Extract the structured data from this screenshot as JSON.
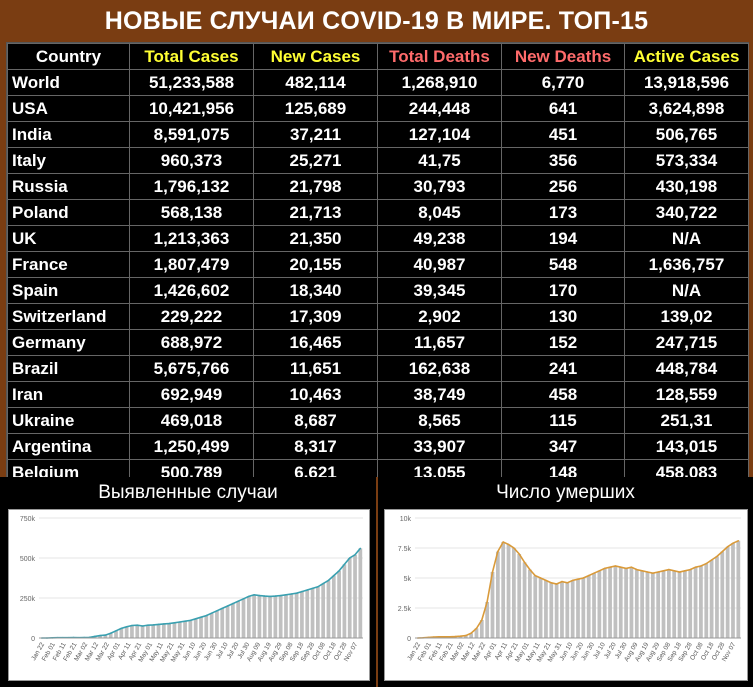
{
  "title": "НОВЫЕ СЛУЧАИ COVID-19 В МИРЕ. ТОП-15",
  "table": {
    "headers": [
      "Country",
      "Total Cases",
      "New Cases",
      "Total Deaths",
      "New Deaths",
      "Active Cases"
    ],
    "header_colors": [
      "#ffffff",
      "#ffff33",
      "#ffff33",
      "#ff6b6b",
      "#ff6b6b",
      "#ffff33"
    ],
    "rows": [
      [
        "World",
        "51,233,588",
        "482,114",
        "1,268,910",
        "6,770",
        "13,918,596"
      ],
      [
        "USA",
        "10,421,956",
        "125,689",
        "244,448",
        "641",
        "3,624,898"
      ],
      [
        "India",
        "8,591,075",
        "37,211",
        "127,104",
        "451",
        "506,765"
      ],
      [
        "Italy",
        "960,373",
        "25,271",
        "41,75",
        "356",
        "573,334"
      ],
      [
        "Russia",
        "1,796,132",
        "21,798",
        "30,793",
        "256",
        "430,198"
      ],
      [
        "Poland",
        "568,138",
        "21,713",
        "8,045",
        "173",
        "340,722"
      ],
      [
        "UK",
        "1,213,363",
        "21,350",
        "49,238",
        "194",
        "N/A"
      ],
      [
        "France",
        "1,807,479",
        "20,155",
        "40,987",
        "548",
        "1,636,757"
      ],
      [
        "Spain",
        "1,426,602",
        "18,340",
        "39,345",
        "170",
        "N/A"
      ],
      [
        "Switzerland",
        "229,222",
        "17,309",
        "2,902",
        "130",
        "139,02"
      ],
      [
        "Germany",
        "688,972",
        "16,465",
        "11,657",
        "152",
        "247,715"
      ],
      [
        "Brazil",
        "5,675,766",
        "11,651",
        "162,638",
        "241",
        "448,784"
      ],
      [
        "Iran",
        "692,949",
        "10,463",
        "38,749",
        "458",
        "128,559"
      ],
      [
        "Ukraine",
        "469,018",
        "8,687",
        "8,565",
        "115",
        "251,31"
      ],
      [
        "Argentina",
        "1,250,499",
        "8,317",
        "33,907",
        "347",
        "143,015"
      ],
      [
        "Belgium",
        "500,789",
        "6,621",
        "13,055",
        "148",
        "458,083"
      ]
    ]
  },
  "chart_data": [
    {
      "type": "bar",
      "title": "Выявленные случаи",
      "ylim": [
        0,
        750000
      ],
      "yticks": [
        "750k",
        "500k",
        "250k",
        "0"
      ],
      "ytick_values": [
        750000,
        500000,
        250000,
        0
      ],
      "xticks": [
        "Jan 22",
        "Feb 01",
        "Feb 11",
        "Feb 21",
        "Mar 02",
        "Mar 12",
        "Mar 22",
        "Apr 01",
        "Apr 11",
        "Apr 21",
        "May 01",
        "May 11",
        "May 21",
        "May 31",
        "Jun 10",
        "Jun 20",
        "Jun 30",
        "Jul 10",
        "Jul 20",
        "Jul 30",
        "Aug 09",
        "Aug 19",
        "Aug 29",
        "Sep 08",
        "Sep 18",
        "Sep 28",
        "Oct 08",
        "Oct 18",
        "Oct 28",
        "Nov 07"
      ],
      "series": [
        {
          "values": [
            0,
            0,
            1000,
            2000,
            2000,
            2000,
            3000,
            2000,
            3000,
            4000,
            10000,
            15000,
            18000,
            30000,
            45000,
            60000,
            70000,
            78000,
            80000,
            75000,
            80000,
            82000,
            85000,
            88000,
            90000,
            95000,
            100000,
            105000,
            110000,
            120000,
            130000,
            140000,
            155000,
            170000,
            185000,
            200000,
            215000,
            230000,
            245000,
            260000,
            270000,
            265000,
            262000,
            260000,
            262000,
            265000,
            270000,
            275000,
            280000,
            290000,
            300000,
            310000,
            320000,
            340000,
            360000,
            390000,
            420000,
            460000,
            500000,
            520000,
            560000
          ]
        },
        {
          "values": [
            0,
            0,
            1000,
            2000,
            2000,
            2000,
            3000,
            2000,
            3000,
            4000,
            10000,
            15000,
            18000,
            30000,
            45000,
            60000,
            70000,
            78000,
            80000,
            75000,
            80000,
            82000,
            85000,
            88000,
            90000,
            95000,
            100000,
            105000,
            110000,
            120000,
            130000,
            140000,
            155000,
            170000,
            185000,
            200000,
            215000,
            230000,
            245000,
            260000,
            270000,
            265000,
            262000,
            260000,
            262000,
            265000,
            270000,
            275000,
            280000,
            290000,
            300000,
            310000,
            320000,
            340000,
            360000,
            390000,
            420000,
            460000,
            500000,
            520000,
            560000
          ]
        }
      ]
    },
    {
      "type": "bar",
      "title": "Число умерших",
      "ylim": [
        0,
        10000
      ],
      "yticks": [
        "10k",
        "7.5k",
        "5k",
        "2.5k",
        "0"
      ],
      "ytick_values": [
        10000,
        7500,
        5000,
        2500,
        0
      ],
      "xticks": [
        "Jan 22",
        "Feb 01",
        "Feb 11",
        "Feb 21",
        "Mar 02",
        "Mar 12",
        "Mar 22",
        "Apr 01",
        "Apr 11",
        "Apr 21",
        "May 01",
        "May 11",
        "May 21",
        "May 31",
        "Jun 10",
        "Jun 20",
        "Jun 30",
        "Jul 10",
        "Jul 20",
        "Jul 30",
        "Aug 09",
        "Aug 19",
        "Aug 29",
        "Sep 08",
        "Sep 18",
        "Sep 28",
        "Oct 08",
        "Oct 18",
        "Oct 28",
        "Nov 07"
      ],
      "series": [
        {
          "values": [
            0,
            20,
            50,
            80,
            100,
            100,
            100,
            120,
            150,
            200,
            400,
            800,
            1500,
            3000,
            5500,
            7200,
            8000,
            7800,
            7500,
            7000,
            6300,
            5700,
            5200,
            5000,
            4800,
            4600,
            4500,
            4700,
            4600,
            4800,
            4900,
            5000,
            5200,
            5400,
            5600,
            5800,
            5900,
            6000,
            5900,
            5800,
            5900,
            5700,
            5600,
            5500,
            5400,
            5500,
            5600,
            5700,
            5600,
            5500,
            5600,
            5700,
            5900,
            6000,
            6200,
            6500,
            6800,
            7200,
            7600,
            7900,
            8100
          ]
        },
        {
          "values": [
            0,
            20,
            50,
            80,
            100,
            100,
            100,
            120,
            150,
            200,
            400,
            800,
            1500,
            3000,
            5500,
            7200,
            8000,
            7800,
            7500,
            7000,
            6300,
            5700,
            5200,
            5000,
            4800,
            4600,
            4500,
            4700,
            4600,
            4800,
            4900,
            5000,
            5200,
            5400,
            5600,
            5800,
            5900,
            6000,
            5900,
            5800,
            5900,
            5700,
            5600,
            5500,
            5400,
            5500,
            5600,
            5700,
            5600,
            5500,
            5600,
            5700,
            5900,
            6000,
            6200,
            6500,
            6800,
            7200,
            7600,
            7900,
            8100
          ]
        }
      ]
    }
  ],
  "colors": {
    "bar": "#c0c0c0",
    "line_cases": "#3aa0b0",
    "line_deaths": "#d99a3a"
  }
}
